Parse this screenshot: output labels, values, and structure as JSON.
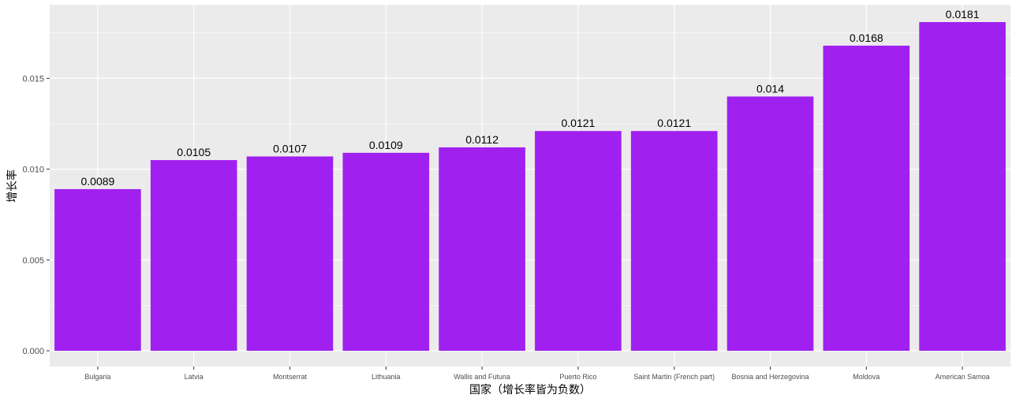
{
  "chart_data": {
    "type": "bar",
    "xlabel": "国家（增长率皆为负数）",
    "ylabel": "增长率",
    "categories": [
      "Bulgaria",
      "Latvia",
      "Montserrat",
      "Lithuania",
      "Wallis and Futuna",
      "Puerto Rico",
      "Saint Martin (French part)",
      "Bosnia and Herzegovina",
      "Moldova",
      "American Samoa"
    ],
    "values": [
      0.0089,
      0.0105,
      0.0107,
      0.0109,
      0.0112,
      0.0121,
      0.0121,
      0.014,
      0.0168,
      0.0181
    ],
    "value_labels": [
      "0.0089",
      "0.0105",
      "0.0107",
      "0.0109",
      "0.0112",
      "0.0121",
      "0.0121",
      "0.014",
      "0.0168",
      "0.0181"
    ],
    "ylim": [
      0,
      0.019
    ],
    "yticks": [
      0,
      0.005,
      0.01,
      0.015
    ],
    "ytick_labels": [
      "0.000",
      "0.005",
      "0.010",
      "0.015"
    ],
    "grid": true,
    "bar_color": "#a020f0",
    "panel_color": "#ebebeb",
    "grid_color": "#ffffff"
  }
}
